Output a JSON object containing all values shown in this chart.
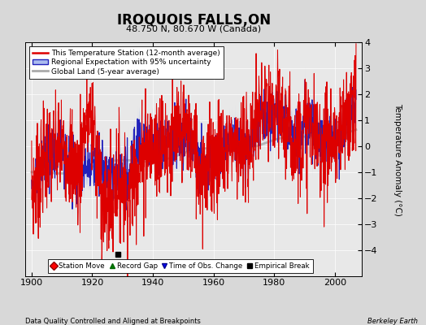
{
  "title": "IROQUOIS FALLS,ON",
  "subtitle": "48.750 N, 80.670 W (Canada)",
  "ylabel": "Temperature Anomaly (°C)",
  "xlabel_bottom": "Data Quality Controlled and Aligned at Breakpoints",
  "xlabel_right": "Berkeley Earth",
  "ylim": [
    -5,
    4
  ],
  "xlim": [
    1898,
    2009
  ],
  "xticks": [
    1900,
    1920,
    1940,
    1960,
    1980,
    2000
  ],
  "yticks": [
    -4,
    -3,
    -2,
    -1,
    0,
    1,
    2,
    3,
    4
  ],
  "background_color": "#d8d8d8",
  "plot_bg_color": "#e8e8e8",
  "legend_entries": [
    "This Temperature Station (12-month average)",
    "Regional Expectation with 95% uncertainty",
    "Global Land (5-year average)"
  ],
  "red_color": "#dd0000",
  "blue_color": "#2222bb",
  "blue_fill_color": "#aabbee",
  "gray_color": "#aaaaaa",
  "empirical_break_year": 1928.5,
  "empirical_break_y": -4.15
}
